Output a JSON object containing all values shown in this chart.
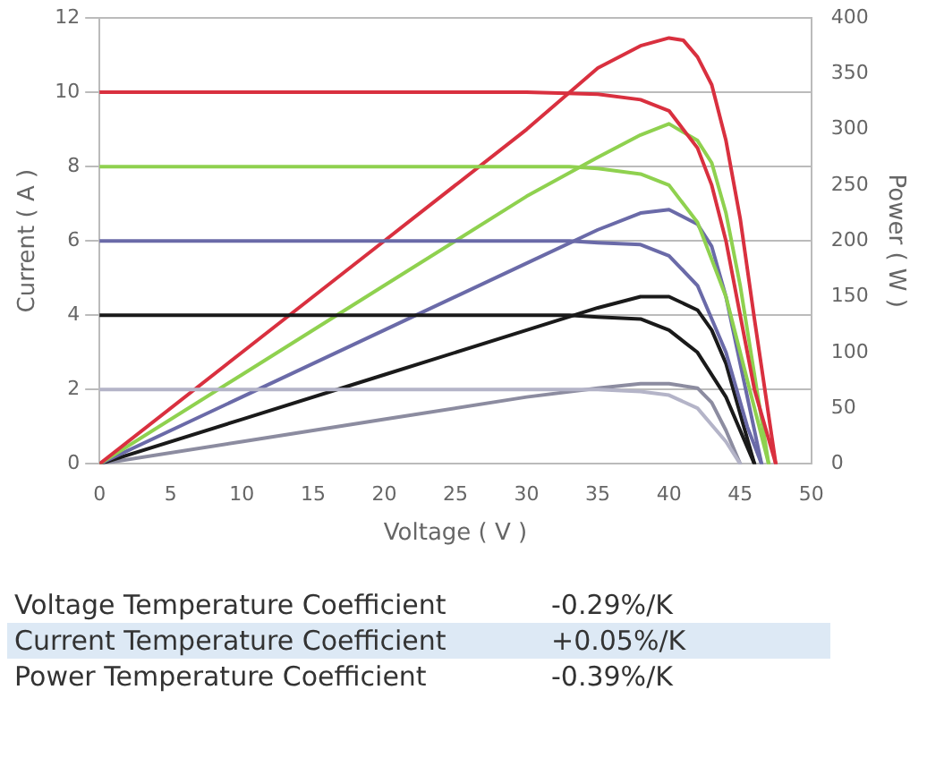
{
  "chart_data": {
    "type": "line",
    "xlabel": "Voltage ( V )",
    "ylabel": "Current ( A )",
    "y2label": "Power ( W )",
    "xlim": [
      0,
      50
    ],
    "xticks": [
      0,
      5,
      10,
      15,
      20,
      25,
      30,
      35,
      40,
      45,
      50
    ],
    "ylim": [
      0,
      12
    ],
    "yticks": [
      0,
      2,
      4,
      6,
      8,
      10,
      12
    ],
    "y2lim": [
      0,
      400
    ],
    "y2ticks": [
      0,
      50,
      100,
      150,
      200,
      250,
      300,
      350,
      400
    ],
    "grid": "y",
    "legend": false,
    "marker": "none",
    "line_style": "solid",
    "series": [
      {
        "color": "#d9303f",
        "x": [
          0,
          30,
          35,
          38,
          40,
          42,
          43,
          44,
          45,
          46,
          47.5
        ],
        "values": [
          10,
          10,
          9.95,
          9.8,
          9.5,
          8.5,
          7.5,
          6,
          4,
          2,
          0
        ]
      },
      {
        "color": "#8fd14f",
        "x": [
          0,
          33,
          35,
          38,
          40,
          42,
          44,
          46,
          47
        ],
        "values": [
          8,
          8,
          7.95,
          7.8,
          7.5,
          6.5,
          4.5,
          1.5,
          0
        ]
      },
      {
        "color": "#6a6aa8",
        "x": [
          0,
          33,
          35,
          38,
          40,
          42,
          44,
          45.5,
          46.5
        ],
        "values": [
          6,
          6,
          5.95,
          5.9,
          5.6,
          4.8,
          3,
          1,
          0
        ]
      },
      {
        "color": "#1a1a1a",
        "x": [
          0,
          33,
          35,
          38,
          40,
          42,
          44,
          46
        ],
        "values": [
          4,
          4,
          3.95,
          3.9,
          3.6,
          3,
          1.8,
          0
        ]
      },
      {
        "color": "#b4b4c8",
        "x": [
          0,
          33,
          35,
          38,
          40,
          42,
          44,
          45
        ],
        "values": [
          2,
          2,
          2,
          1.95,
          1.85,
          1.5,
          0.6,
          0
        ]
      },
      {
        "color": "#d9303f",
        "axis": "y2",
        "x": [
          0,
          10,
          20,
          30,
          35,
          38,
          40,
          41,
          42,
          43,
          44,
          45,
          46,
          47.5
        ],
        "values": [
          0,
          100,
          200,
          300,
          355,
          375,
          382,
          380,
          365,
          340,
          290,
          220,
          130,
          0
        ]
      },
      {
        "color": "#8fd14f",
        "axis": "y2",
        "x": [
          0,
          10,
          20,
          30,
          35,
          38,
          40,
          42,
          43,
          44,
          45,
          46,
          47
        ],
        "values": [
          0,
          80,
          160,
          240,
          275,
          295,
          305,
          290,
          270,
          225,
          160,
          80,
          0
        ]
      },
      {
        "color": "#6a6aa8",
        "axis": "y2",
        "x": [
          0,
          10,
          20,
          30,
          35,
          38,
          40,
          42,
          43,
          44,
          45,
          46.5
        ],
        "values": [
          0,
          60,
          120,
          180,
          210,
          225,
          228,
          215,
          195,
          150,
          90,
          0
        ]
      },
      {
        "color": "#1a1a1a",
        "axis": "y2",
        "x": [
          0,
          10,
          20,
          30,
          35,
          38,
          40,
          42,
          43,
          44,
          45,
          46
        ],
        "values": [
          0,
          40,
          80,
          120,
          140,
          150,
          150,
          138,
          120,
          90,
          45,
          0
        ]
      },
      {
        "color": "#8c8ca0",
        "axis": "y2",
        "x": [
          0,
          10,
          20,
          30,
          35,
          38,
          40,
          42,
          43,
          44,
          45
        ],
        "values": [
          0,
          20,
          40,
          60,
          68,
          72,
          72,
          68,
          55,
          30,
          0
        ]
      }
    ],
    "annotations": [
      "Voltage Temperature Coefficient",
      "-0.29%/K",
      "Current Temperature Coefficient",
      "+0.05%/K",
      "Power Temperature Coefficient",
      "-0.39%/K"
    ]
  }
}
